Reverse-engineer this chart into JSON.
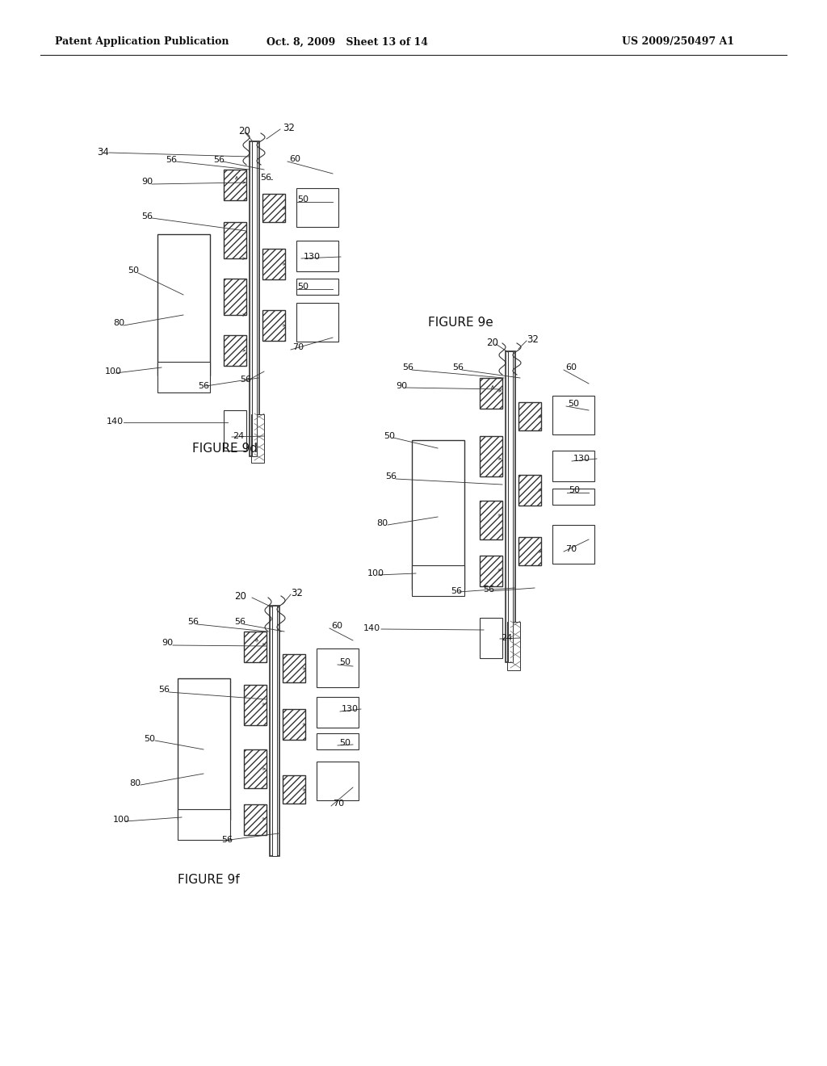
{
  "bg_color": "#ffffff",
  "line_color": "#333333",
  "hatch_color": "#444444"
}
